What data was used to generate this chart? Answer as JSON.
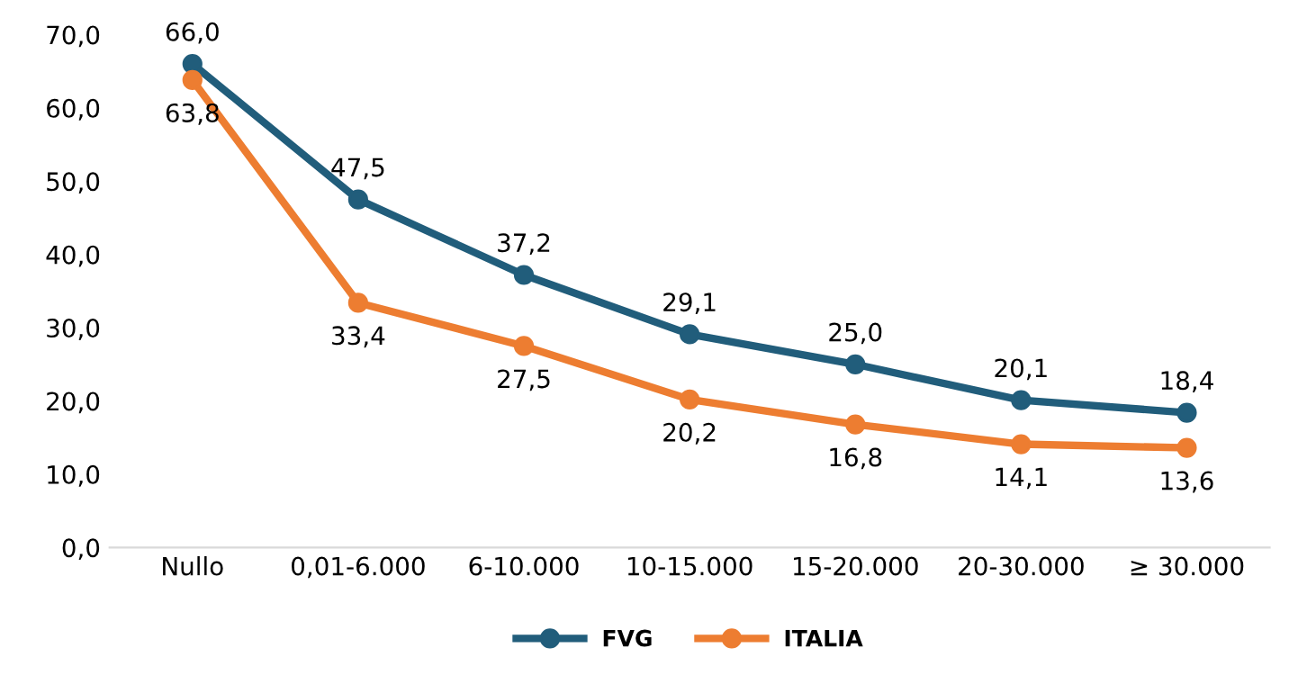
{
  "chart_data": {
    "type": "line",
    "categories": [
      "Nullo",
      "0,01-6.000",
      "6-10.000",
      "10-15.000",
      "15-20.000",
      "20-30.000",
      "≥ 30.000"
    ],
    "series": [
      {
        "name": "FVG",
        "color": "#215d7b",
        "values": [
          66.0,
          47.5,
          37.2,
          29.1,
          25.0,
          20.1,
          18.4
        ],
        "value_labels": [
          "66,0",
          "47,5",
          "37,2",
          "29,1",
          "25,0",
          "20,1",
          "18,4"
        ]
      },
      {
        "name": "ITALIA",
        "color": "#ed7d31",
        "values": [
          63.8,
          33.4,
          27.5,
          20.2,
          16.8,
          14.1,
          13.6
        ],
        "value_labels": [
          "63,8",
          "33,4",
          "27,5",
          "20,2",
          "16,8",
          "14,1",
          "13,6"
        ]
      }
    ],
    "ylim": [
      0,
      70
    ],
    "yticks": [
      {
        "value": 0,
        "label": "0,0"
      },
      {
        "value": 10,
        "label": "10,0"
      },
      {
        "value": 20,
        "label": "20,0"
      },
      {
        "value": 30,
        "label": "30,0"
      },
      {
        "value": 40,
        "label": "40,0"
      },
      {
        "value": 50,
        "label": "50,0"
      },
      {
        "value": 60,
        "label": "60,0"
      },
      {
        "value": 70,
        "label": "70,0"
      }
    ],
    "grid": false,
    "legend": "bottom",
    "marker": "circle",
    "line_style": "solid"
  }
}
